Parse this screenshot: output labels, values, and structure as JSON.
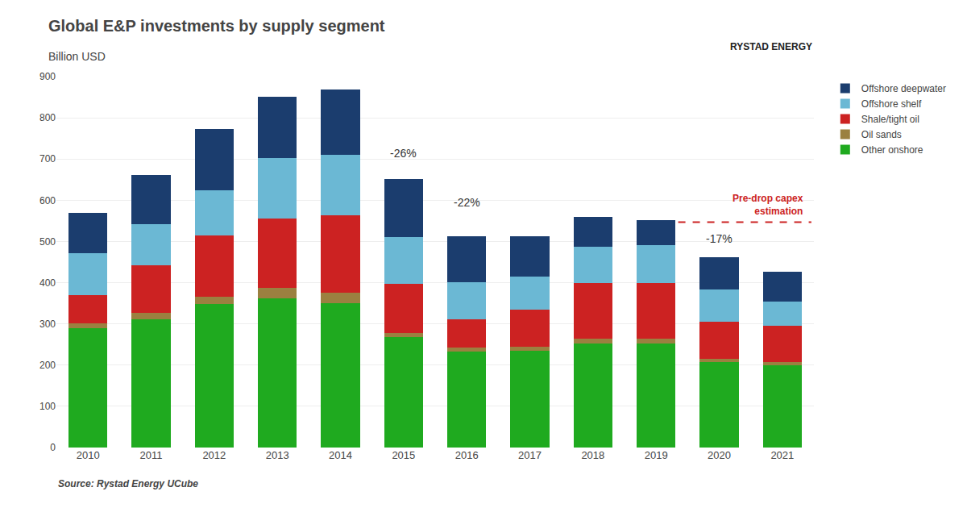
{
  "chart_data": {
    "type": "bar",
    "title": "Global E&P investments by supply segment",
    "subtitle": "Billion USD",
    "source": "Source: Rystad Energy UCube",
    "credit": "RYSTAD ENERGY",
    "categories": [
      "2010",
      "2011",
      "2012",
      "2013",
      "2014",
      "2015",
      "2016",
      "2017",
      "2018",
      "2019",
      "2020",
      "2021"
    ],
    "series": [
      {
        "name": "Other onshore",
        "color": "#1faa1f",
        "values": [
          290,
          312,
          348,
          362,
          350,
          268,
          233,
          235,
          252,
          252,
          207,
          200
        ]
      },
      {
        "name": "Oil sands",
        "color": "#9b8040",
        "values": [
          12,
          15,
          18,
          25,
          25,
          10,
          10,
          10,
          12,
          12,
          8,
          8
        ]
      },
      {
        "name": "Shale/tight oil",
        "color": "#cc2222",
        "values": [
          68,
          115,
          148,
          168,
          188,
          120,
          68,
          90,
          135,
          135,
          90,
          88
        ]
      },
      {
        "name": "Offshore shelf",
        "color": "#6bb8d4",
        "values": [
          102,
          100,
          110,
          148,
          148,
          112,
          90,
          80,
          88,
          92,
          78,
          58
        ]
      },
      {
        "name": "Offshore deepwater",
        "color": "#1b3d6e",
        "values": [
          98,
          120,
          148,
          148,
          158,
          142,
          112,
          98,
          72,
          60,
          78,
          72
        ]
      }
    ],
    "stacked": true,
    "annotations": [
      {
        "x": "2015",
        "y": 695,
        "text": "-26%"
      },
      {
        "x": "2016",
        "y": 575,
        "text": "-22%"
      },
      {
        "x": "2020",
        "y": 488,
        "text": "-17%"
      }
    ],
    "reference_line": {
      "y": 547,
      "from": "2019",
      "label": "Pre-drop capex\nestimation",
      "color": "#cc2222",
      "line_style": "dashed"
    },
    "ylim": [
      0,
      900
    ],
    "yticks": [
      0,
      100,
      200,
      300,
      400,
      500,
      600,
      700,
      800,
      900
    ],
    "grid": true,
    "legend": "upper right"
  }
}
